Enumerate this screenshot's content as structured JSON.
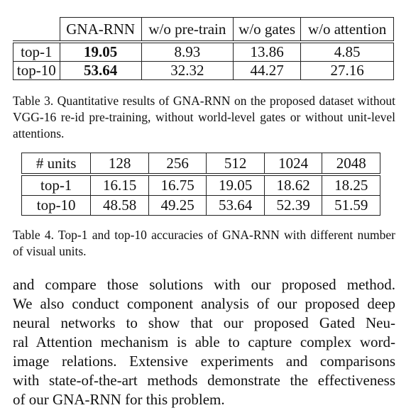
{
  "table3": {
    "header": [
      "GNA-RNN",
      "w/o pre-train",
      "w/o gates",
      "w/o attention"
    ],
    "rows": [
      [
        "top-1",
        "19.05",
        "8.93",
        "13.86",
        "4.85"
      ],
      [
        "top-10",
        "53.64",
        "32.32",
        "44.27",
        "27.16"
      ]
    ],
    "caption": "Table 3. Quantitative results of GNA-RNN on the proposed dataset without VGG-16 re-id pre-training, without world-level gates or without unit-level attentions."
  },
  "table4": {
    "header": [
      "# units",
      "128",
      "256",
      "512",
      "1024",
      "2048"
    ],
    "rows": [
      [
        "top-1",
        "16.15",
        "16.75",
        "19.05",
        "18.62",
        "18.25"
      ],
      [
        "top-10",
        "48.58",
        "49.25",
        "53.64",
        "52.39",
        "51.59"
      ]
    ],
    "caption": "Table 4. Top-1 and top-10 accuracies of GNA-RNN with different number of visual units."
  },
  "paragraph": {
    "lines": [
      "and compare those solutions with our proposed method.",
      "We also conduct component analysis of our proposed deep",
      "neural networks to show that our proposed Gated Neu-",
      "ral Attention mechanism is able to capture complex word-",
      "image relations.  Extensive experiments and comparisons",
      "with state-of-the-art methods demonstrate the effectiveness",
      "of our GNA-RNN for this problem."
    ]
  }
}
